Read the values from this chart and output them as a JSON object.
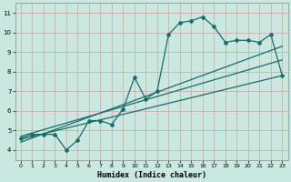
{
  "title": "",
  "xlabel": "Humidex (Indice chaleur)",
  "bg_color": "#c8e8e0",
  "grid_color": "#d4a0a0",
  "line_color": "#1a6b6b",
  "xlim": [
    -0.5,
    23.5
  ],
  "ylim": [
    3.5,
    11.5
  ],
  "xticks": [
    0,
    1,
    2,
    3,
    4,
    5,
    6,
    7,
    8,
    9,
    10,
    11,
    12,
    13,
    14,
    15,
    16,
    17,
    18,
    19,
    20,
    21,
    22,
    23
  ],
  "yticks": [
    4,
    5,
    6,
    7,
    8,
    9,
    10,
    11
  ],
  "main_x": [
    0,
    1,
    2,
    3,
    4,
    5,
    6,
    7,
    8,
    9,
    10,
    11,
    12,
    13,
    14,
    15,
    16,
    17,
    18,
    19,
    20,
    21,
    22,
    23
  ],
  "main_y": [
    4.6,
    4.8,
    4.8,
    4.8,
    4.0,
    4.5,
    5.5,
    5.5,
    5.3,
    6.1,
    7.7,
    6.6,
    7.0,
    9.9,
    10.5,
    10.6,
    10.8,
    10.3,
    9.5,
    9.6,
    9.6,
    9.5,
    9.9,
    7.8
  ],
  "line2_x": [
    0,
    23
  ],
  "line2_y": [
    4.55,
    7.8
  ],
  "line3_x": [
    0,
    23
  ],
  "line3_y": [
    4.7,
    8.6
  ],
  "line4_x": [
    0,
    23
  ],
  "line4_y": [
    4.4,
    9.3
  ]
}
